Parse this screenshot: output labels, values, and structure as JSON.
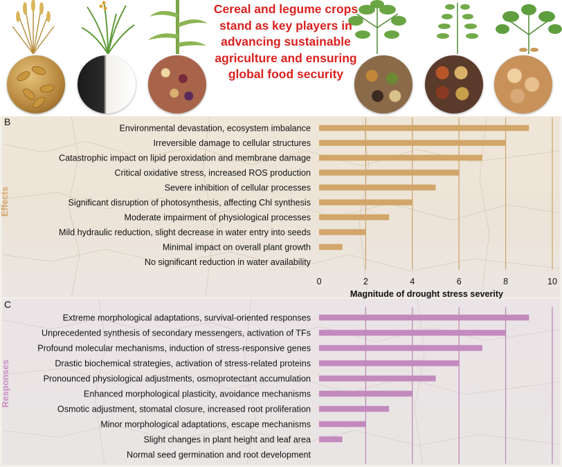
{
  "banner": {
    "title": "Cereal and legume crops stand as key players in advancing sustainable agriculture and ensuring global food security"
  },
  "colors": {
    "effects_bar": "#d2a66a",
    "effects_grid": "#c79a5c",
    "effects_axis_title": "#d4a46b",
    "responses_bar": "#c38bbd",
    "responses_grid": "#b57aae",
    "responses_axis_title": "#c98fc3",
    "banner_title": "#d9211f"
  },
  "chart_data": [
    {
      "panel": "B",
      "type": "bar",
      "orientation": "horizontal",
      "ylabel": "Effects",
      "xlabel": "Magnitude of drought stress severity",
      "xlim": [
        0,
        10
      ],
      "xticks": [
        0,
        2,
        4,
        6,
        8,
        10
      ],
      "categories": [
        "Environmental devastation, ecosystem imbalance",
        "Irreversible damage to cellular structures",
        "Catastrophic impact on lipid peroxidation and membrane damage",
        "Critical oxidative stress, increased ROS production",
        "Severe inhibition of cellular processes",
        "Significant disruption of photosynthesis, affecting Chl synthesis",
        "Moderate impairment of physiological processes",
        "Mild hydraulic reduction, slight decrease in water entry into seeds",
        "Minimal impact on overall plant growth",
        "No significant reduction in water availability"
      ],
      "values": [
        9,
        8,
        7,
        6,
        5,
        4,
        3,
        2,
        1,
        0
      ],
      "grid": "vertical"
    },
    {
      "panel": "C",
      "type": "bar",
      "orientation": "horizontal",
      "ylabel": "Responses",
      "xlabel": "",
      "xlim": [
        0,
        10
      ],
      "categories": [
        "Extreme morphological adaptations, survival-oriented responses",
        "Unprecedented synthesis of secondary messengers, activation of TFs",
        "Profound molecular mechanisms, induction of stress-responsive genes",
        "Drastic biochemical strategies, activation of stress-related proteins",
        "Pronounced physiological adjustments, osmoprotectant accumulation",
        "Enhanced morphological plasticity, avoidance mechanisms",
        "Osmotic adjustment, stomatal closure, increased root proliferation",
        "Minor morphological adaptations, escape mechanisms",
        "Slight changes in plant height and leaf area",
        "Normal seed germination and root development"
      ],
      "values": [
        9,
        8,
        7,
        6,
        5,
        4,
        3,
        2,
        1,
        0
      ],
      "grid": "vertical"
    }
  ]
}
